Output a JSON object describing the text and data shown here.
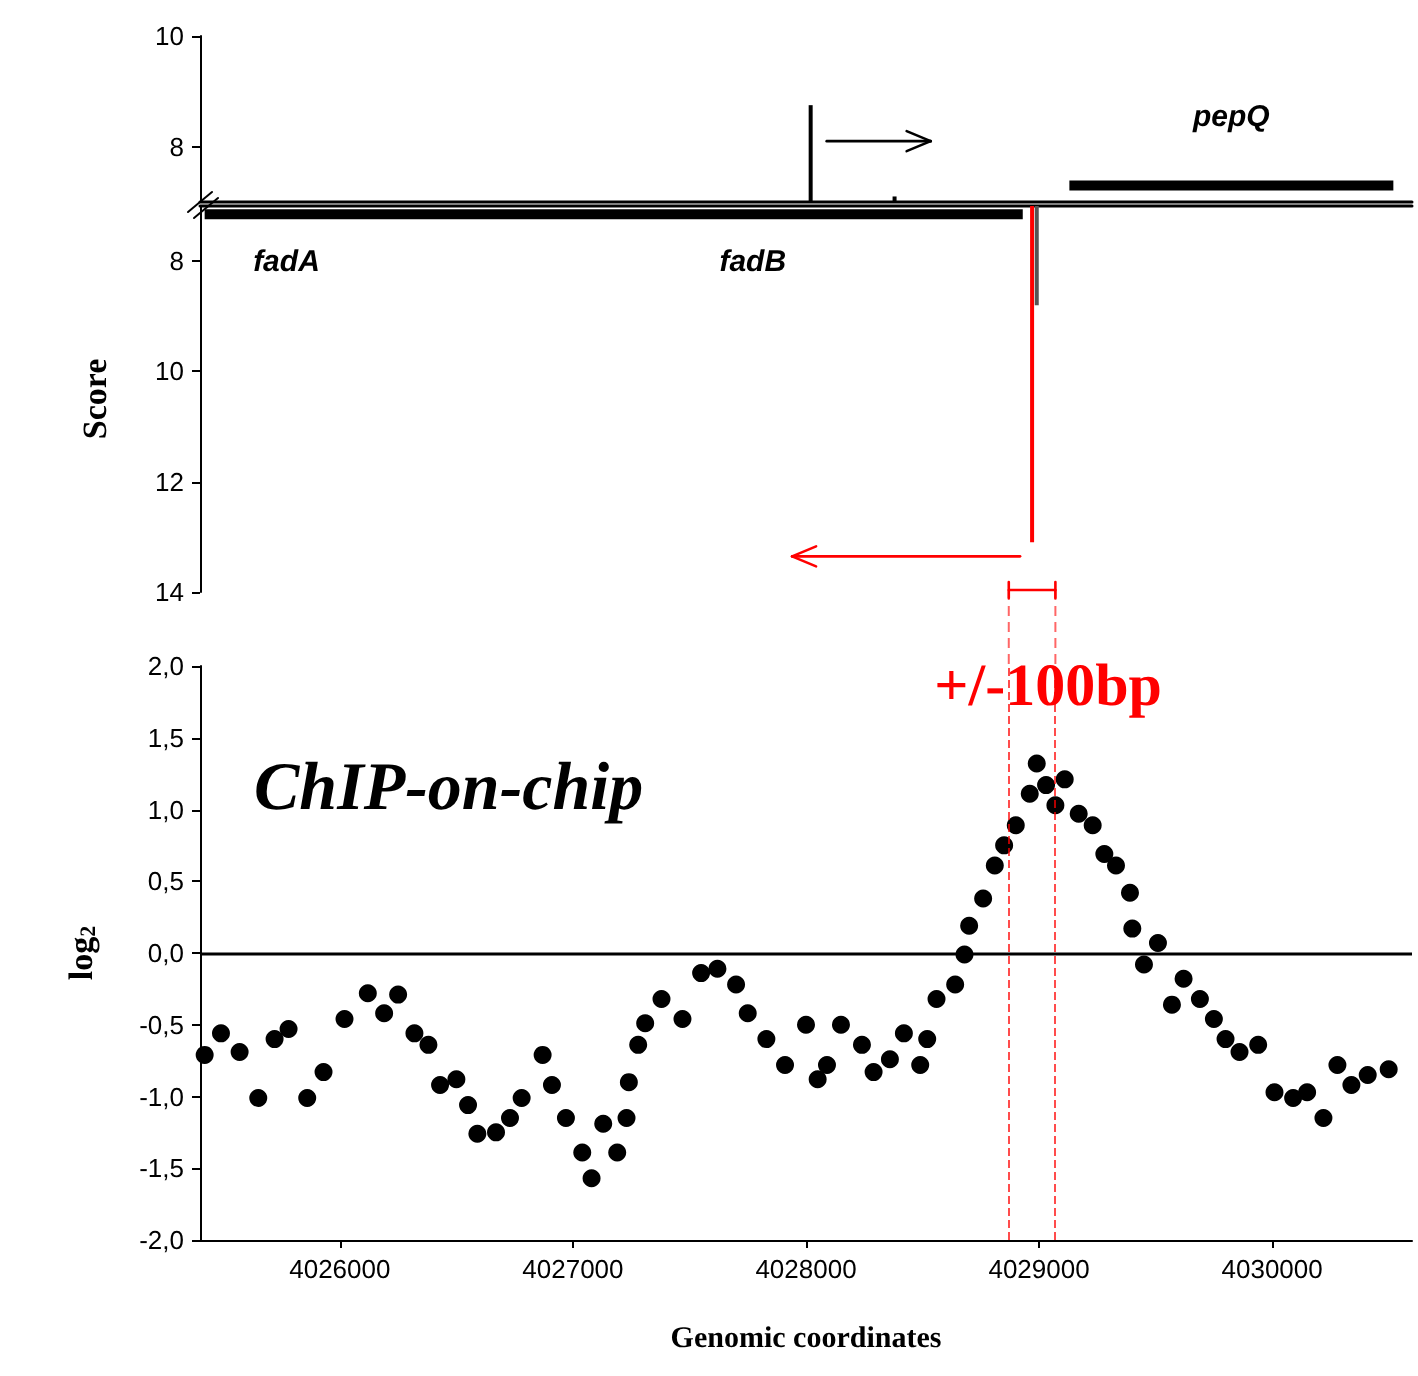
{
  "chart_data": [
    {
      "type": "bar",
      "xlim": [
        4025400,
        4030600
      ],
      "ylim": [
        7,
        10
      ],
      "yticks": [
        8,
        10
      ],
      "tick_labels": "y",
      "marker": "none",
      "x": [
        4028020,
        4028380
      ],
      "values": [
        8.75,
        7.1
      ],
      "colors": [
        "#000000",
        "#000000"
      ],
      "series": [
        {
          "type": "line",
          "x": [
            4029130,
            4030520
          ],
          "values": [
            7.3,
            7.3
          ],
          "color": "#000000"
        }
      ],
      "annotations": [
        "pepQ"
      ]
    },
    {
      "type": "bar",
      "xlim": [
        4025400,
        4030600
      ],
      "ylim": [
        14,
        7
      ],
      "yticks": [
        8,
        10,
        12,
        14
      ],
      "tick_labels": "y",
      "marker": "none",
      "ylabel": "Score",
      "x": [
        4028970,
        4028990
      ],
      "values": [
        13.1,
        8.8
      ],
      "colors": [
        "#ff0000",
        "#555555"
      ],
      "series": [
        {
          "type": "line",
          "x": [
            4025420,
            4028930
          ],
          "values": [
            7.15,
            7.15
          ],
          "color": "#000000"
        }
      ],
      "annotations": [
        "fadA",
        "fadB"
      ]
    },
    {
      "type": "scatter",
      "title": "ChIP-on-chip",
      "xlabel": "Genomic coordinates",
      "ylabel": "log$_{2}$",
      "xlim": [
        4025400,
        4030600
      ],
      "ylim": [
        -2,
        2
      ],
      "xticks": [
        4026000,
        4027000,
        4028000,
        4029000,
        4030000
      ],
      "yticks": [
        {
          "value": -2,
          "label": "-2,0"
        },
        {
          "value": -1.5,
          "label": "-1,5"
        },
        {
          "value": -1,
          "label": "-1,0"
        },
        {
          "value": -0.5,
          "label": "-0,5"
        },
        {
          "value": 0,
          "label": "0,0"
        },
        {
          "value": 0.5,
          "label": "0,5"
        },
        {
          "value": 1,
          "label": "1,0"
        },
        {
          "value": 1.5,
          "label": "1,5"
        },
        {
          "value": 2,
          "label": "2,0"
        }
      ],
      "marker": "circle",
      "color": "#000000",
      "ref_lines": [
        {
          "axis": "y",
          "value": 0,
          "color": "#000000",
          "line_style": "solid"
        },
        {
          "axis": "x",
          "value": 4028870,
          "color": "#ff0000",
          "line_style": "dashed"
        },
        {
          "axis": "x",
          "value": 4029070,
          "color": "#ff0000",
          "line_style": "dashed"
        }
      ],
      "annotations": [
        "+/-100bp"
      ],
      "x": [
        4025420,
        4025490,
        4025570,
        4025650,
        4025720,
        4025780,
        4025860,
        4025930,
        4026020,
        4026120,
        4026190,
        4026250,
        4026320,
        4026380,
        4026430,
        4026500,
        4026550,
        4026590,
        4026670,
        4026730,
        4026780,
        4026870,
        4026910,
        4026970,
        4027040,
        4027080,
        4027130,
        4027190,
        4027230,
        4027240,
        4027280,
        4027310,
        4027380,
        4027470,
        4027550,
        4027620,
        4027700,
        4027750,
        4027830,
        4027910,
        4028000,
        4028050,
        4028090,
        4028150,
        4028240,
        4028290,
        4028360,
        4028420,
        4028490,
        4028520,
        4028560,
        4028640,
        4028680,
        4028700,
        4028760,
        4028810,
        4028850,
        4028900,
        4028960,
        4028990,
        4029030,
        4029070,
        4029110,
        4029170,
        4029230,
        4029280,
        4029330,
        4029390,
        4029400,
        4029450,
        4029510,
        4029570,
        4029620,
        4029690,
        4029750,
        4029800,
        4029860,
        4029940,
        4030010,
        4030090,
        4030150,
        4030220,
        4030280,
        4030340,
        4030410,
        4030500
      ],
      "values": [
        -0.71,
        -0.56,
        -0.69,
        -1.01,
        -0.6,
        -0.53,
        -1.01,
        -0.83,
        -0.46,
        -0.28,
        -0.42,
        -0.29,
        -0.56,
        -0.64,
        -0.92,
        -0.88,
        -1.06,
        -1.26,
        -1.25,
        -1.15,
        -1.01,
        -0.71,
        -0.92,
        -1.15,
        -1.39,
        -1.57,
        -1.19,
        -1.39,
        -1.15,
        -0.9,
        -0.64,
        -0.49,
        -0.32,
        -0.46,
        -0.14,
        -0.11,
        -0.22,
        -0.42,
        -0.6,
        -0.78,
        -0.5,
        -0.88,
        -0.78,
        -0.5,
        -0.64,
        -0.83,
        -0.74,
        -0.56,
        -0.78,
        -0.6,
        -0.32,
        -0.22,
        -0.01,
        0.19,
        0.38,
        0.61,
        0.75,
        0.89,
        1.11,
        1.32,
        1.17,
        1.03,
        1.21,
        0.97,
        0.89,
        0.69,
        0.61,
        0.42,
        0.17,
        -0.08,
        0.07,
        -0.36,
        -0.18,
        -0.32,
        -0.46,
        -0.6,
        -0.69,
        -0.64,
        -0.97,
        -1.01,
        -0.97,
        -1.15,
        -0.78,
        -0.92,
        -0.85,
        -0.81
      ]
    }
  ]
}
